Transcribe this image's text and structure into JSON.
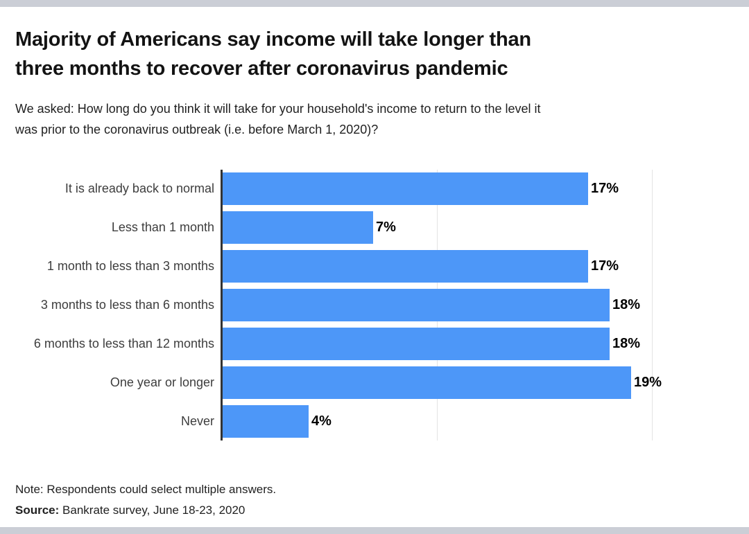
{
  "page": {
    "title_line1": "Majority of Americans say income will take longer than",
    "title_line2": "three months to recover after coronavirus pandemic",
    "subtitle_line1": "We asked: How long do you think it will take for your household's income to return to the level it",
    "subtitle_line2": "was prior to the coronavirus outbreak (i.e. before March 1, 2020)?",
    "note": "Note: Respondents could select multiple answers.",
    "source_label": "Source:",
    "source_text": "Bankrate survey, June 18-23, 2020"
  },
  "chart_data": {
    "type": "bar",
    "orientation": "horizontal",
    "title": "Majority of Americans say income will take longer than three months to recover after coronavirus pandemic",
    "subtitle": "We asked: How long do you think it will take for your household's income to return to the level it was prior to the coronavirus outbreak (i.e. before March 1, 2020)?",
    "categories": [
      "It is already back to normal",
      "Less than 1 month",
      "1 month to less than 3 months",
      "3 months to less than 6 months",
      "6 months to less than 12 months",
      "One year or longer",
      "Never"
    ],
    "values": [
      17,
      7,
      17,
      18,
      18,
      19,
      4
    ],
    "value_labels": [
      "17%",
      "7%",
      "17%",
      "18%",
      "18%",
      "19%",
      "4%"
    ],
    "xlabel": "",
    "ylabel": "",
    "xlim": [
      0,
      23.8
    ],
    "gridlines_percent": [
      10,
      20
    ],
    "grid": true,
    "legend": false,
    "bar_color": "#4d97f8",
    "axis_color": "#333333",
    "gridline_color": "#e3e3e3",
    "accent_strip_color": "#cbced6"
  }
}
